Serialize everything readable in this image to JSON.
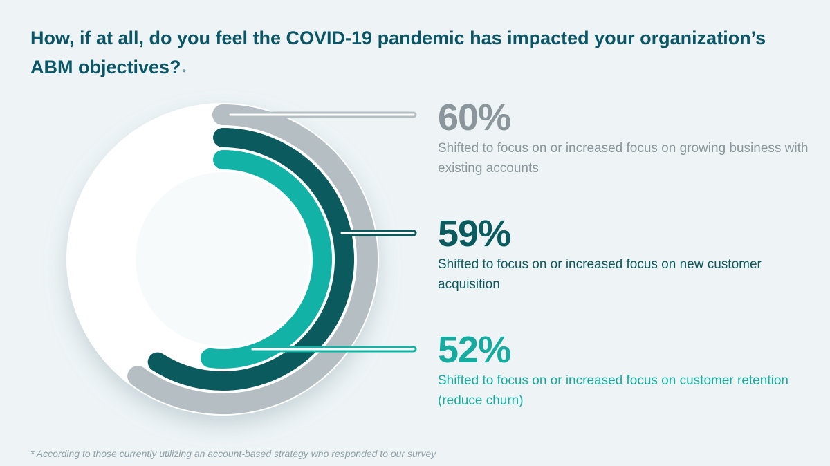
{
  "chart_data": {
    "type": "radial-bar",
    "title": "How, if at all, do you feel the COVID-19 pandemic has impacted your organization’s ABM objectives?",
    "title_mark": "*",
    "unit": "%",
    "max": 100,
    "series": [
      {
        "value": 60,
        "value_label": "60%",
        "description": "Shifted to focus on or increased focus on growing business with existing accounts",
        "color": "#b5bec2",
        "text_color": "#8a969b"
      },
      {
        "value": 59,
        "value_label": "59%",
        "description": "Shifted to focus on or increased focus on new customer acquisition",
        "color": "#0b5a5e",
        "text_color": "#0b5a5e"
      },
      {
        "value": 52,
        "value_label": "52%",
        "description": "Shifted to focus on or increased focus on customer retention (reduce churn)",
        "color": "#12b3a6",
        "text_color": "#17ab9f"
      }
    ],
    "footnote": "* According to those currently utilizing an account-based strategy who responded to our survey"
  },
  "colors": {
    "background": "#eef4f6",
    "title": "#0b5666",
    "track": "#ffffff",
    "footnote": "#8fa1a8"
  }
}
